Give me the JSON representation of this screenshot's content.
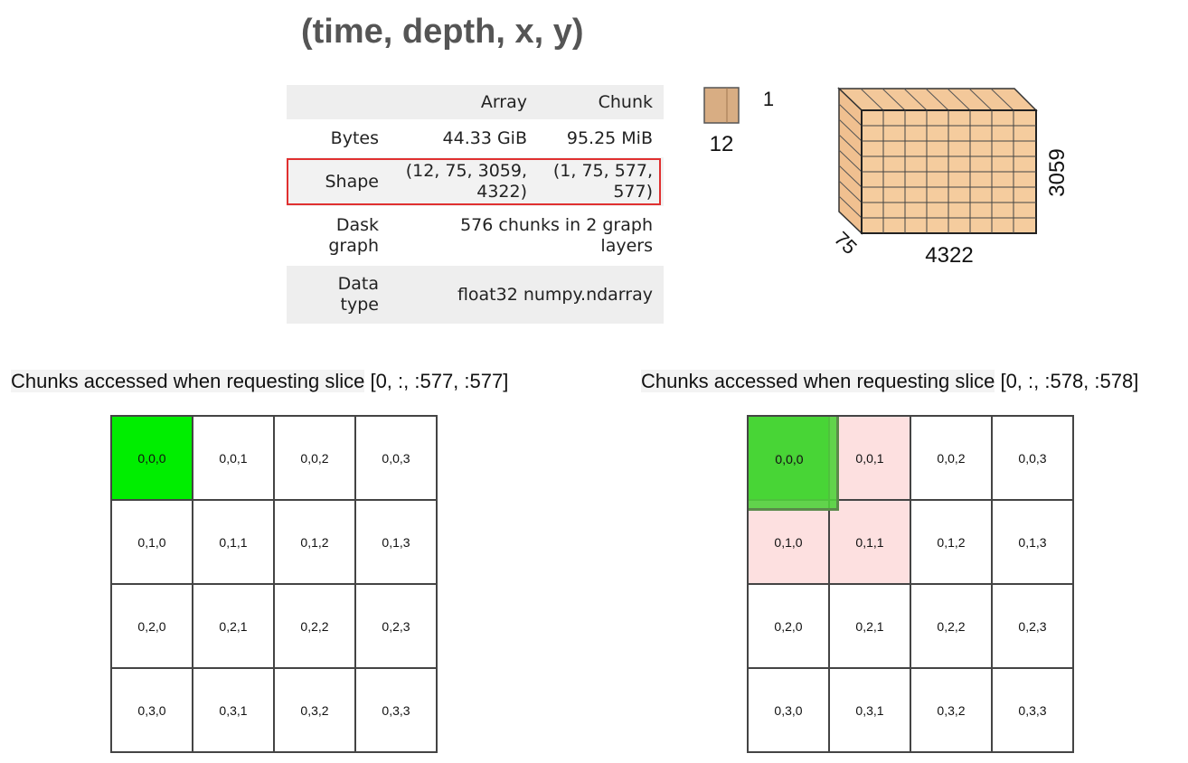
{
  "title": "(time, depth, x, y)",
  "summary_table": {
    "header": {
      "array": "Array",
      "chunk": "Chunk"
    },
    "bytes": {
      "label": "Bytes",
      "array": "44.33 GiB",
      "chunk": "95.25 MiB"
    },
    "shape": {
      "label": "Shape",
      "array_line1": "(12, 75, 3059,",
      "array_line2": "4322)",
      "chunk_line1": "(1, 75, 577,",
      "chunk_line2": "577)"
    },
    "dask_graph": {
      "label_line1": "Dask",
      "label_line2": "graph",
      "value_line1": "576 chunks in 2 graph",
      "value_line2": "layers"
    },
    "data_type": {
      "label_line1": "Data",
      "label_line2": "type",
      "value": "float32 numpy.ndarray"
    }
  },
  "dimension_labels": {
    "small_top": "1",
    "small_bottom": "12",
    "cube_right": "3059",
    "cube_bottom": "4322",
    "cube_depth": "75"
  },
  "colors": {
    "accessed": "#00ee00",
    "overlap": "#fde0e0",
    "slice_overlay": "#50d23c",
    "shape_highlight": "#e03030",
    "cube_fill": "#f3c89a"
  },
  "panels": [
    {
      "caption_prefix": "Chunks accessed when requesting slice",
      "caption_slice": "[0, :, :577, :577]",
      "cells": [
        [
          "0,0,0",
          "0,0,1",
          "0,0,2",
          "0,0,3"
        ],
        [
          "0,1,0",
          "0,1,1",
          "0,1,2",
          "0,1,3"
        ],
        [
          "0,2,0",
          "0,2,1",
          "0,2,2",
          "0,2,3"
        ],
        [
          "0,3,0",
          "0,3,1",
          "0,3,2",
          "0,3,3"
        ]
      ],
      "accessed": [
        "0,0,0"
      ],
      "overlap": []
    },
    {
      "caption_prefix": "Chunks accessed when requesting slice",
      "caption_slice": "[0, :, :578, :578]",
      "cells": [
        [
          "0,0,0",
          "0,0,1",
          "0,0,2",
          "0,0,3"
        ],
        [
          "0,1,0",
          "0,1,1",
          "0,1,2",
          "0,1,3"
        ],
        [
          "0,2,0",
          "0,2,1",
          "0,2,2",
          "0,2,3"
        ],
        [
          "0,3,0",
          "0,3,1",
          "0,3,2",
          "0,3,3"
        ]
      ],
      "accessed": [
        "0,0,0"
      ],
      "overlap": [
        "0,0,1",
        "0,1,0",
        "0,1,1"
      ]
    }
  ]
}
